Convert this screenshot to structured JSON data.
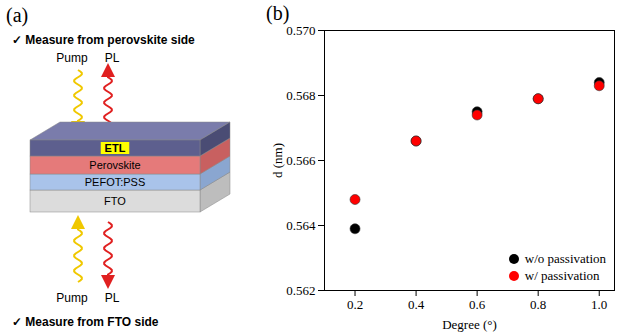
{
  "diagram": {
    "panel": "(a)",
    "top_caption": "✓ Measure from perovskite side",
    "top_arrows": [
      "Pump",
      "PL"
    ],
    "layers": [
      "ETL",
      "Perovskite",
      "PEFOT:PSS",
      "FTO"
    ],
    "bottom_arrows": [
      "Pump",
      "PL"
    ],
    "bottom_caption": "✓ Measure from FTO side"
  },
  "chart_data": {
    "type": "scatter",
    "title": "(b)",
    "x_label": "Degree (°)",
    "y_label": "d (nm)",
    "xlim": [
      0.1,
      1.05
    ],
    "xticks": [
      0.2,
      0.4,
      0.6,
      0.8,
      {
        "value": 1,
        "label": "1.0"
      }
    ],
    "ylim": [
      0.562,
      0.57
    ],
    "yticks": [
      0.562,
      0.564,
      0.566,
      0.568,
      {
        "value": 0.57,
        "label": "0.570"
      }
    ],
    "legend": "bottom-right",
    "series": [
      {
        "name": "w/o passivation",
        "color": "#000000",
        "marker": "circle",
        "x": [
          0.2,
          0.4,
          0.6,
          0.8,
          1.0
        ],
        "values": [
          0.5639,
          0.5666,
          0.5675,
          0.5679,
          0.5684
        ]
      },
      {
        "name": "w/ passivation",
        "color": "#ff0000",
        "marker": "circle",
        "x": [
          0.2,
          0.4,
          0.6,
          0.8,
          1.0
        ],
        "values": [
          0.5648,
          0.5666,
          0.5674,
          0.5679,
          0.5683
        ]
      }
    ]
  }
}
